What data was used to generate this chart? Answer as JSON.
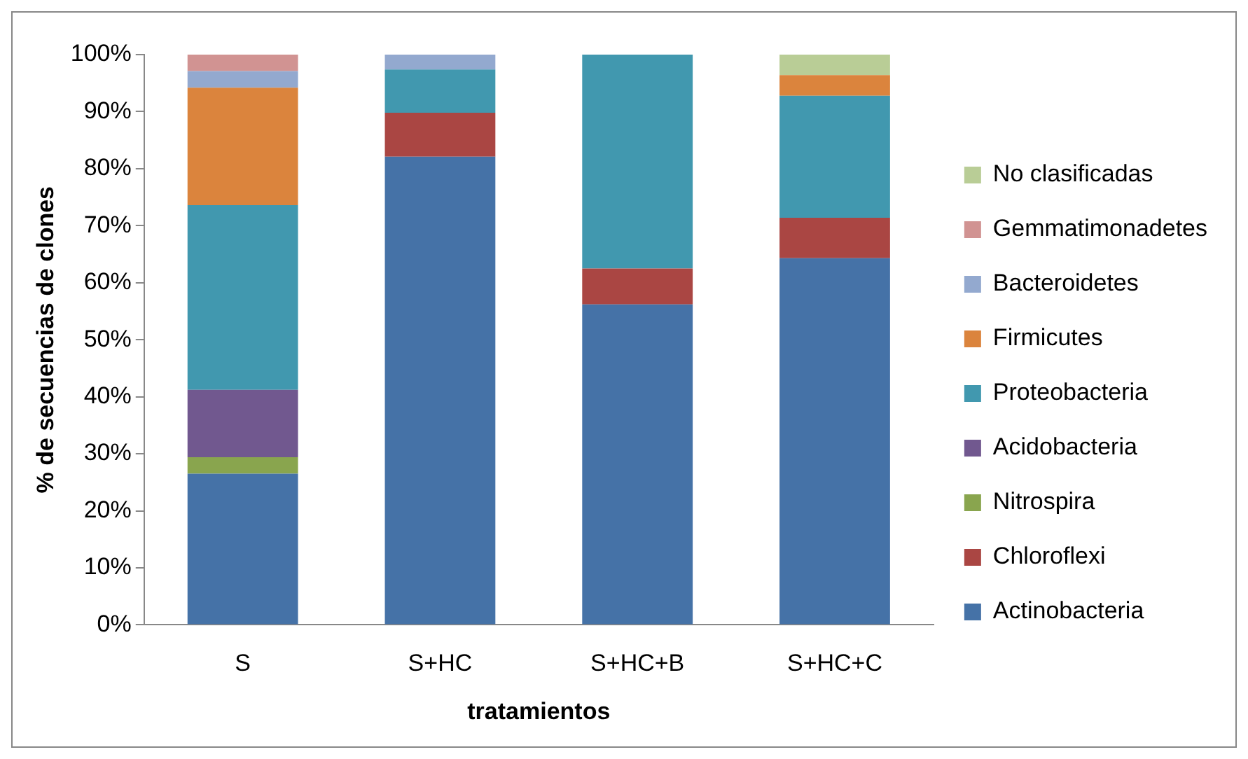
{
  "chart_data": {
    "type": "bar",
    "stacked": true,
    "xlabel": "tratamientos",
    "ylabel": "% de secuencias de clones",
    "categories": [
      "S",
      "S+HC",
      "S+HC+B",
      "S+HC+C"
    ],
    "ylim": [
      0,
      100
    ],
    "yticks": [
      {
        "value": 0,
        "label": "0%"
      },
      {
        "value": 10,
        "label": "10%"
      },
      {
        "value": 20,
        "label": "20%"
      },
      {
        "value": 30,
        "label": "30%"
      },
      {
        "value": 40,
        "label": "40%"
      },
      {
        "value": 50,
        "label": "50%"
      },
      {
        "value": 60,
        "label": "60%"
      },
      {
        "value": 70,
        "label": "70%"
      },
      {
        "value": 80,
        "label": "80%"
      },
      {
        "value": 90,
        "label": "90%"
      },
      {
        "value": 100,
        "label": "100%"
      }
    ],
    "grid": false,
    "legend": "right",
    "series": [
      {
        "name": "Actinobacteria",
        "color": "#4572a7",
        "values": [
          26.5,
          82.1,
          56.2,
          64.3
        ]
      },
      {
        "name": "Chloroflexi",
        "color": "#aa4643",
        "values": [
          0,
          7.7,
          6.3,
          7.1
        ]
      },
      {
        "name": "Nitrospira",
        "color": "#89a54e",
        "values": [
          2.9,
          0,
          0,
          0
        ]
      },
      {
        "name": "Acidobacteria",
        "color": "#71588f",
        "values": [
          11.8,
          0,
          0,
          0
        ]
      },
      {
        "name": "Proteobacteria",
        "color": "#4198af",
        "values": [
          32.4,
          7.6,
          37.5,
          21.4
        ]
      },
      {
        "name": "Firmicutes",
        "color": "#db843d",
        "values": [
          20.6,
          0,
          0,
          3.6
        ]
      },
      {
        "name": "Bacteroidetes",
        "color": "#93a9cf",
        "values": [
          2.9,
          2.6,
          0,
          0
        ]
      },
      {
        "name": "Gemmatimonadetes",
        "color": "#d19392",
        "values": [
          2.9,
          0,
          0,
          0
        ]
      },
      {
        "name": "No clasificadas",
        "color": "#b9cd96",
        "values": [
          0,
          0,
          0,
          3.6
        ]
      }
    ]
  }
}
